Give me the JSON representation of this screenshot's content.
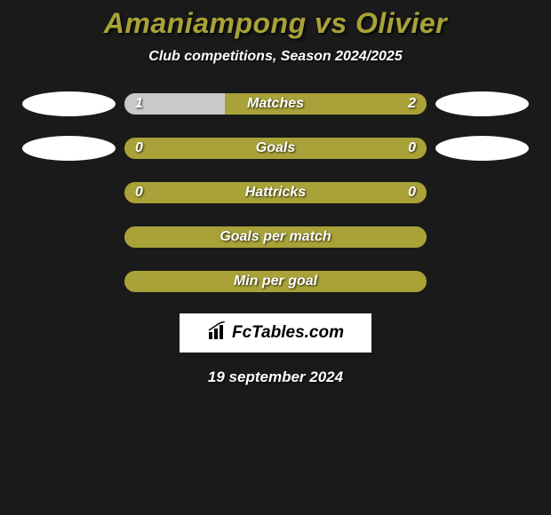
{
  "title": "Amaniampong vs Olivier",
  "subtitle": "Club competitions, Season 2024/2025",
  "date": "19 september 2024",
  "watermark": "FcTables.com",
  "colors": {
    "background": "#1a1a1a",
    "accent": "#a8a238",
    "bar_olive": "#a8a238",
    "bar_light": "#c9c9c9",
    "title_color": "#a8a238",
    "text_white": "#ffffff"
  },
  "stats": [
    {
      "label": "Matches",
      "left_value": "1",
      "right_value": "2",
      "left_pct": 33.3,
      "right_pct": 66.7,
      "left_color": "#c9c9c9",
      "right_color": "#a8a238",
      "show_left_ellipse": true,
      "show_right_ellipse": true
    },
    {
      "label": "Goals",
      "left_value": "0",
      "right_value": "0",
      "left_pct": 0,
      "right_pct": 100,
      "left_color": "#a8a238",
      "right_color": "#a8a238",
      "show_left_ellipse": true,
      "show_right_ellipse": true
    },
    {
      "label": "Hattricks",
      "left_value": "0",
      "right_value": "0",
      "left_pct": 0,
      "right_pct": 100,
      "left_color": "#a8a238",
      "right_color": "#a8a238",
      "show_left_ellipse": false,
      "show_right_ellipse": false
    },
    {
      "label": "Goals per match",
      "left_value": "",
      "right_value": "",
      "left_pct": 0,
      "right_pct": 100,
      "left_color": "#a8a238",
      "right_color": "#a8a238",
      "show_left_ellipse": false,
      "show_right_ellipse": false
    },
    {
      "label": "Min per goal",
      "left_value": "",
      "right_value": "",
      "left_pct": 0,
      "right_pct": 100,
      "left_color": "#a8a238",
      "right_color": "#a8a238",
      "show_left_ellipse": false,
      "show_right_ellipse": false
    }
  ]
}
